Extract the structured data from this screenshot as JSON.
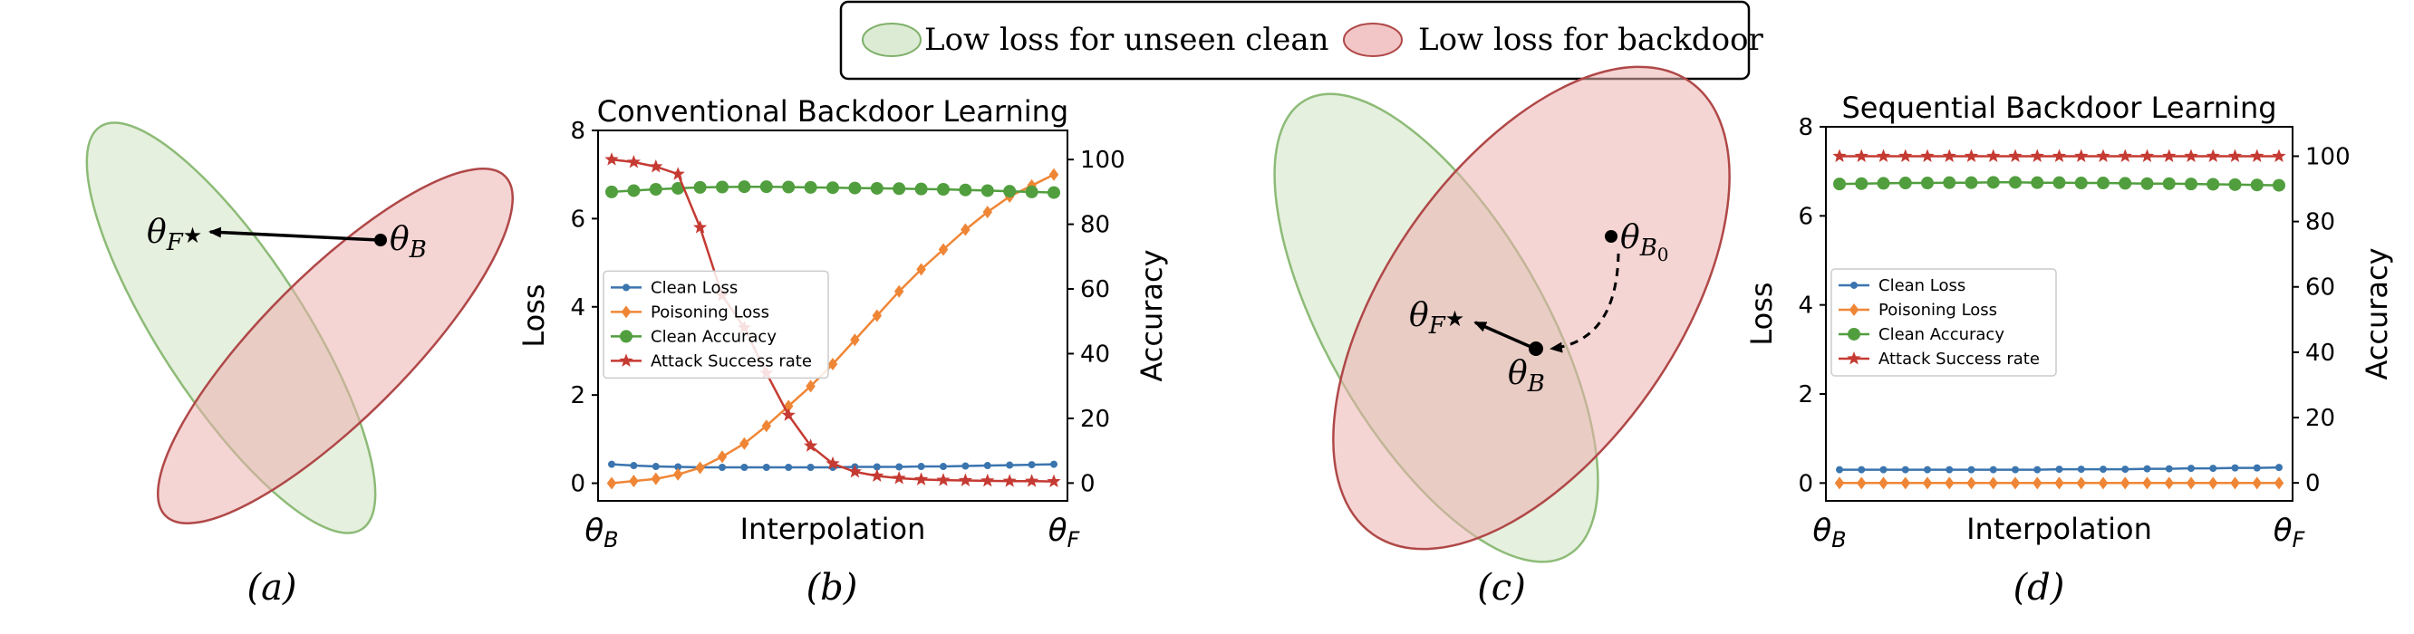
{
  "legend_top": {
    "items": [
      {
        "label": "Low loss for unseen clean",
        "color": "#dcebd3",
        "stroke": "#7fb06a"
      },
      {
        "label": "Low loss for backdoor",
        "color": "#f2c6c6",
        "stroke": "#b04848"
      }
    ]
  },
  "panel_labels": [
    "(a)",
    "(b)",
    "(c)",
    "(d)"
  ],
  "diagrams": {
    "a": {
      "theta_f": "θ",
      "theta_f_sub": "F",
      "theta_f_star": "★",
      "theta_b": "θ",
      "theta_b_sub": "B"
    },
    "c": {
      "theta_f": "θ",
      "theta_f_sub": "F",
      "theta_f_star": "★",
      "theta_b": "θ",
      "theta_b_sub": "B",
      "theta_b0": "θ",
      "theta_b0_sub": "B",
      "theta_b0_subsub": "0"
    }
  },
  "colors": {
    "clean_loss": "#3b75af",
    "poison_loss": "#ef8636",
    "clean_acc": "#519e3e",
    "asr": "#c53a32"
  },
  "chart_data": [
    {
      "type": "line",
      "title": "Conventional Backdoor Learning",
      "xlabel": "Interpolation",
      "x_tick_left": "θ",
      "x_tick_left_sub": "B",
      "x_tick_right": "θ",
      "x_tick_right_sub": "F",
      "ylabel": "Loss",
      "ylabel_right": "Accuracy",
      "ylim": [
        -0.4,
        8
      ],
      "ylim_right": [
        -5.5,
        109
      ],
      "yticks": [
        "0",
        "2",
        "4",
        "6",
        "8"
      ],
      "yticks_right": [
        "0",
        "20",
        "40",
        "60",
        "80",
        "100"
      ],
      "x": [
        0,
        1,
        2,
        3,
        4,
        5,
        6,
        7,
        8,
        9,
        10,
        11,
        12,
        13,
        14,
        15,
        16,
        17,
        18,
        19,
        20
      ],
      "legend": [
        "Clean Loss",
        "Poisoning Loss",
        "Clean Accuracy",
        "Attack Success rate"
      ],
      "series": [
        {
          "name": "Clean Loss",
          "axis": "left",
          "values": [
            0.43,
            0.4,
            0.38,
            0.37,
            0.36,
            0.36,
            0.36,
            0.36,
            0.36,
            0.36,
            0.36,
            0.37,
            0.37,
            0.37,
            0.38,
            0.38,
            0.39,
            0.4,
            0.41,
            0.42,
            0.43
          ]
        },
        {
          "name": "Poisoning Loss",
          "axis": "left",
          "values": [
            0.0,
            0.05,
            0.1,
            0.2,
            0.35,
            0.6,
            0.9,
            1.3,
            1.75,
            2.2,
            2.7,
            3.25,
            3.8,
            4.35,
            4.85,
            5.3,
            5.75,
            6.15,
            6.5,
            6.75,
            7.0
          ]
        },
        {
          "name": "Clean Accuracy",
          "axis": "right",
          "values": [
            90.0,
            90.4,
            90.8,
            91.1,
            91.4,
            91.5,
            91.6,
            91.6,
            91.5,
            91.4,
            91.3,
            91.2,
            91.1,
            91.0,
            90.9,
            90.8,
            90.6,
            90.4,
            90.2,
            90.0,
            89.8
          ]
        },
        {
          "name": "Attack Success rate",
          "axis": "right",
          "values": [
            100.0,
            99.2,
            97.8,
            95.5,
            79.0,
            58.0,
            48.0,
            34.0,
            21.0,
            11.5,
            6.0,
            3.5,
            2.2,
            1.5,
            1.1,
            0.9,
            0.8,
            0.7,
            0.6,
            0.6,
            0.5
          ]
        }
      ]
    },
    {
      "type": "line",
      "title": "Sequential Backdoor Learning",
      "xlabel": "Interpolation",
      "x_tick_left": "θ",
      "x_tick_left_sub": "B",
      "x_tick_right": "θ",
      "x_tick_right_sub": "F",
      "ylabel": "Loss",
      "ylabel_right": "Accuracy",
      "ylim": [
        -0.4,
        8
      ],
      "ylim_right": [
        -5.5,
        109
      ],
      "yticks": [
        "0",
        "2",
        "4",
        "6",
        "8"
      ],
      "yticks_right": [
        "0",
        "20",
        "40",
        "60",
        "80",
        "100"
      ],
      "x": [
        0,
        1,
        2,
        3,
        4,
        5,
        6,
        7,
        8,
        9,
        10,
        11,
        12,
        13,
        14,
        15,
        16,
        17,
        18,
        19,
        20
      ],
      "legend": [
        "Clean Loss",
        "Poisoning Loss",
        "Clean Accuracy",
        "Attack Success rate"
      ],
      "series": [
        {
          "name": "Clean Loss",
          "axis": "left",
          "values": [
            0.3,
            0.3,
            0.3,
            0.3,
            0.3,
            0.3,
            0.3,
            0.3,
            0.3,
            0.3,
            0.31,
            0.31,
            0.31,
            0.31,
            0.32,
            0.32,
            0.33,
            0.33,
            0.34,
            0.34,
            0.35
          ]
        },
        {
          "name": "Poisoning Loss",
          "axis": "left",
          "values": [
            0.0,
            0.0,
            0.0,
            0.0,
            0.0,
            0.0,
            0.0,
            0.0,
            0.0,
            0.0,
            0.0,
            0.0,
            0.0,
            0.0,
            0.0,
            0.0,
            0.0,
            0.0,
            0.0,
            0.0,
            0.0
          ]
        },
        {
          "name": "Clean Accuracy",
          "axis": "right",
          "values": [
            91.5,
            91.6,
            91.7,
            91.8,
            91.8,
            91.9,
            91.9,
            92.0,
            92.0,
            91.9,
            91.9,
            91.8,
            91.8,
            91.7,
            91.6,
            91.6,
            91.5,
            91.4,
            91.3,
            91.2,
            91.1
          ]
        },
        {
          "name": "Attack Success rate",
          "axis": "right",
          "values": [
            100,
            100,
            100,
            100,
            100,
            100,
            100,
            100,
            100,
            100,
            100,
            100,
            100,
            100,
            100,
            100,
            100,
            100,
            100,
            100,
            100
          ]
        }
      ]
    }
  ]
}
